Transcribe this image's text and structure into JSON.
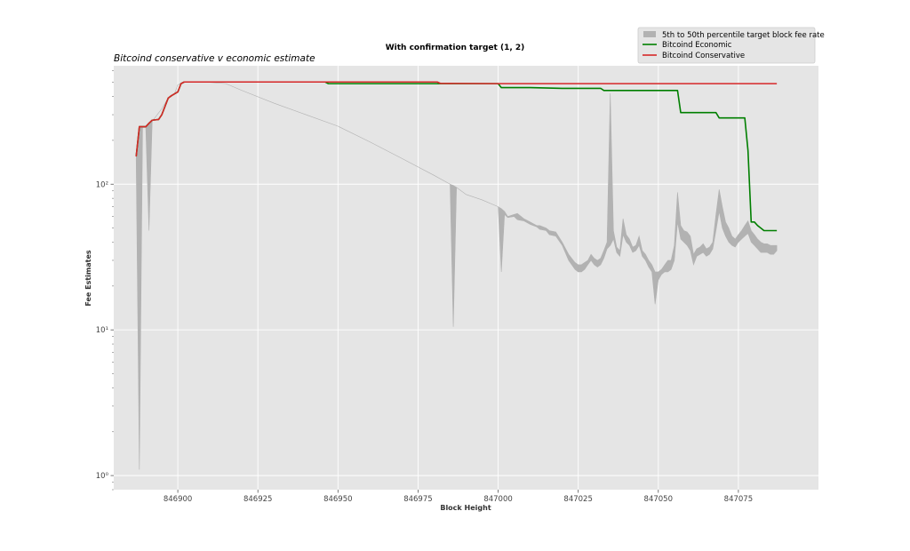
{
  "chart_data": {
    "type": "line",
    "title": "With confirmation target (1, 2)",
    "subtitle": "Bitcoind conservative v economic estimate",
    "xlabel": "Block Height",
    "ylabel": "Fee Estimates",
    "yscale": "log",
    "xlim": [
      846880,
      847100
    ],
    "ylim": [
      0.8,
      650
    ],
    "grid": true,
    "legend_position": "top-right",
    "x_ticks": [
      846900,
      846925,
      846950,
      846975,
      847000,
      847025,
      847050,
      847075
    ],
    "x_tick_labels": [
      "846900",
      "846925",
      "846950",
      "846975",
      "847000",
      "847025",
      "847050",
      "847075"
    ],
    "y_ticks": [
      1,
      10,
      100
    ],
    "y_tick_labels": [
      "10⁰",
      "10¹",
      "10²"
    ],
    "colors": {
      "band": "#b2b2b2",
      "economic": "#007f00",
      "conservative": "#d62728",
      "plot_bg": "#e5e5e5",
      "grid": "#ffffff"
    },
    "band": {
      "name": "5th to 50th percentile target block fee rate",
      "x": [
        846887,
        846888,
        846889,
        846890,
        846891,
        846892,
        846895,
        846897,
        846898,
        846899,
        846900,
        846901,
        846902,
        846910,
        846915,
        846920,
        846930,
        846940,
        846950,
        846960,
        846970,
        846980,
        846985,
        846986,
        846987,
        846990,
        846995,
        847000,
        847001,
        847002,
        847003,
        847005,
        847006,
        847008,
        847010,
        847012,
        847013,
        847015,
        847016,
        847018,
        847020,
        847022,
        847024,
        847025,
        847026,
        847027,
        847028,
        847029,
        847030,
        847031,
        847032,
        847033,
        847034,
        847035,
        847036,
        847037,
        847038,
        847039,
        847040,
        847041,
        847042,
        847043,
        847044,
        847045,
        847046,
        847047,
        847048,
        847049,
        847050,
        847051,
        847052,
        847053,
        847054,
        847055,
        847056,
        847057,
        847058,
        847059,
        847060,
        847061,
        847062,
        847063,
        847064,
        847065,
        847066,
        847067,
        847068,
        847069,
        847070,
        847071,
        847072,
        847073,
        847074,
        847075,
        847076,
        847077,
        847078,
        847079,
        847080,
        847081,
        847082,
        847083,
        847084,
        847085,
        847086,
        847087
      ],
      "upper": [
        150,
        245,
        245,
        245,
        265,
        270,
        330,
        390,
        400,
        420,
        480,
        495,
        500,
        500,
        490,
        440,
        360,
        300,
        250,
        195,
        150,
        115,
        100,
        98,
        95,
        85,
        78,
        70,
        68,
        65,
        60,
        62,
        63,
        58,
        55,
        52,
        52,
        50,
        48,
        47,
        40,
        33,
        29,
        28,
        28,
        29,
        30,
        33,
        31,
        30,
        31,
        35,
        40,
        420,
        48,
        37,
        35,
        58,
        45,
        42,
        37,
        38,
        44,
        35,
        33,
        30,
        28,
        25,
        25,
        26,
        28,
        30,
        30,
        38,
        88,
        52,
        48,
        47,
        44,
        33,
        36,
        37,
        39,
        36,
        37,
        40,
        62,
        92,
        70,
        55,
        50,
        44,
        42,
        45,
        48,
        52,
        56,
        48,
        45,
        42,
        40,
        39,
        39,
        38,
        38,
        38
      ],
      "lower": [
        150,
        1.1,
        245,
        245,
        48,
        270,
        330,
        390,
        400,
        420,
        480,
        495,
        500,
        500,
        490,
        440,
        360,
        300,
        250,
        195,
        150,
        115,
        100,
        10.5,
        95,
        85,
        78,
        70,
        25,
        62,
        59,
        60,
        57,
        56,
        53,
        51,
        49,
        48,
        45,
        44,
        38,
        30,
        26,
        25,
        25,
        26,
        28,
        30,
        28,
        27,
        28,
        31,
        36,
        38,
        42,
        34,
        32,
        45,
        40,
        38,
        34,
        35,
        38,
        32,
        30,
        27,
        25,
        15,
        22,
        24,
        25,
        25,
        26,
        30,
        55,
        42,
        40,
        38,
        35,
        28,
        32,
        33,
        34,
        32,
        33,
        36,
        48,
        65,
        50,
        44,
        40,
        38,
        37,
        40,
        42,
        44,
        46,
        40,
        38,
        36,
        34,
        34,
        34,
        33,
        33,
        35
      ]
    },
    "series": [
      {
        "name": "Bitcoind Economic",
        "x": [
          846887,
          846888,
          846890,
          846891,
          846892,
          846894,
          846895,
          846897,
          846898,
          846900,
          846901,
          846902,
          846910,
          846920,
          846940,
          846946,
          846947,
          846960,
          846980,
          846981,
          846982,
          846990,
          847000,
          847001,
          847010,
          847020,
          847032,
          847033,
          847040,
          847056,
          847057,
          847068,
          847069,
          847077,
          847078,
          847079,
          847080,
          847081,
          847082,
          847083,
          847084,
          847085,
          847086,
          847087
        ],
        "values": [
          155,
          248,
          248,
          262,
          275,
          278,
          300,
          390,
          405,
          430,
          490,
          503,
          503,
          503,
          503,
          503,
          490,
          490,
          490,
          490,
          490,
          490,
          490,
          460,
          460,
          455,
          455,
          440,
          440,
          440,
          310,
          310,
          285,
          285,
          170,
          55,
          55,
          52,
          50,
          48,
          48,
          48,
          48,
          48
        ]
      },
      {
        "name": "Bitcoind Conservative",
        "x": [
          846887,
          846888,
          846890,
          846891,
          846892,
          846894,
          846895,
          846897,
          846898,
          846900,
          846901,
          846902,
          846910,
          846920,
          846940,
          846960,
          846980,
          846981,
          846982,
          847000,
          847020,
          847040,
          847060,
          847080,
          847087
        ],
        "values": [
          155,
          248,
          248,
          262,
          275,
          278,
          300,
          390,
          405,
          430,
          490,
          503,
          503,
          503,
          503,
          503,
          503,
          503,
          492,
          490,
          490,
          490,
          490,
          490,
          490
        ]
      }
    ]
  }
}
